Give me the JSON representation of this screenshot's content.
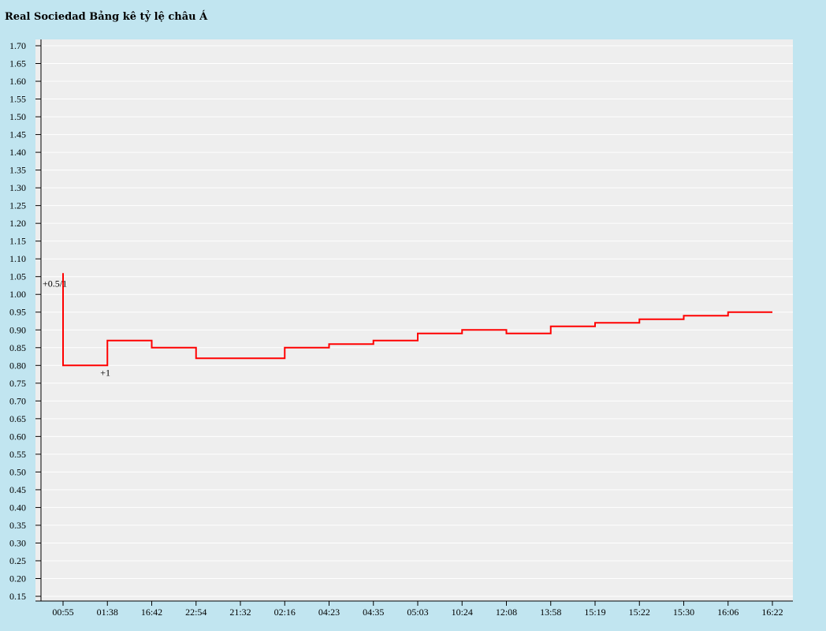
{
  "title": "Real Sociedad Bảng kê tỷ lệ châu Á",
  "colors": {
    "background": "#c1e5f0",
    "plot_bg": "#eeeeee",
    "gridline": "#ffffff",
    "series": "#ff0000"
  },
  "chart_data": {
    "type": "line",
    "step": true,
    "title": "Real Sociedad Bảng kê tỷ lệ châu Á",
    "xlabel": "",
    "ylabel": "",
    "ylim": [
      0.15,
      1.7
    ],
    "ytick_step": 0.05,
    "grid": true,
    "x": [
      "00:55",
      "01:38",
      "16:42",
      "22:54",
      "21:32",
      "02:16",
      "04:23",
      "04:35",
      "05:03",
      "10:24",
      "12:08",
      "13:58",
      "15:19",
      "15:22",
      "15:30",
      "16:06",
      "16:22"
    ],
    "series": [
      {
        "values": [
          0.8,
          0.87,
          0.85,
          0.82,
          0.82,
          0.85,
          0.86,
          0.87,
          0.89,
          0.9,
          0.89,
          0.91,
          0.92,
          0.93,
          0.94,
          0.95,
          0.95
        ]
      }
    ],
    "initial_value": 1.06,
    "annotations": [
      {
        "x_index": 0,
        "value": 1.03,
        "text": "+0.5/1"
      },
      {
        "x_index": 1,
        "value": 0.78,
        "text": "+1"
      }
    ]
  }
}
